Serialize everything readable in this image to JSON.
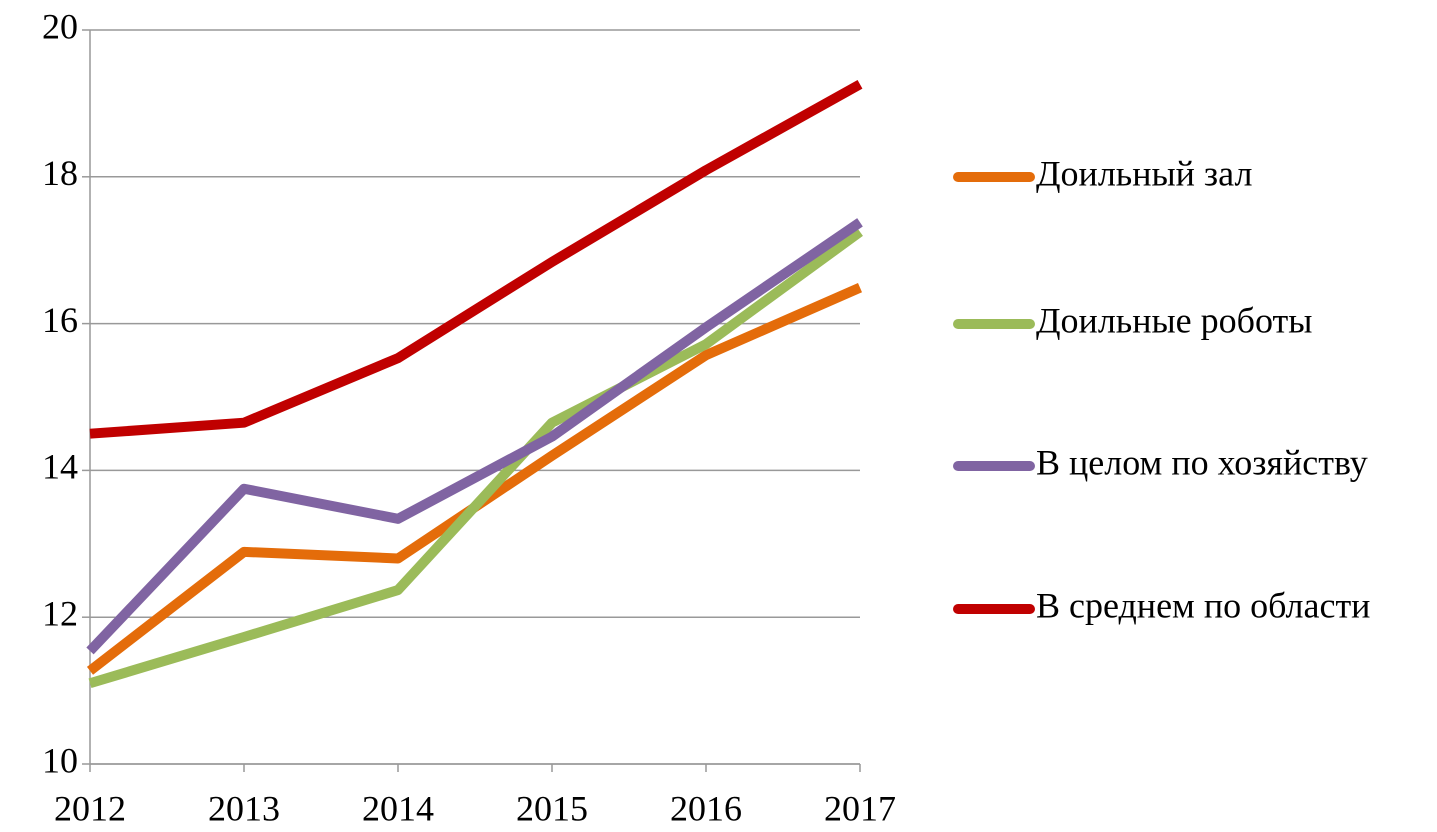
{
  "chart_data": {
    "type": "line",
    "categories": [
      "2012",
      "2013",
      "2014",
      "2015",
      "2016",
      "2017"
    ],
    "series": [
      {
        "name": "Доильный зал",
        "color": "#e46c0a",
        "values": [
          11.27,
          12.89,
          12.8,
          14.2,
          15.57,
          16.49
        ]
      },
      {
        "name": "Доильные роботы",
        "color": "#9bbb59",
        "values": [
          11.1,
          11.73,
          12.37,
          14.65,
          15.72,
          17.25
        ]
      },
      {
        "name": "В целом по хозяйству",
        "color": "#8064a2",
        "values": [
          11.54,
          13.75,
          13.34,
          14.46,
          15.95,
          17.38
        ]
      },
      {
        "name": "В среднем по области",
        "color": "#c00000",
        "values": [
          14.5,
          14.65,
          15.53,
          16.84,
          18.09,
          19.26
        ]
      }
    ],
    "ylim": [
      10,
      20
    ],
    "yticks": [
      10,
      12,
      14,
      16,
      18,
      20
    ],
    "grid": true,
    "legend": "right"
  }
}
